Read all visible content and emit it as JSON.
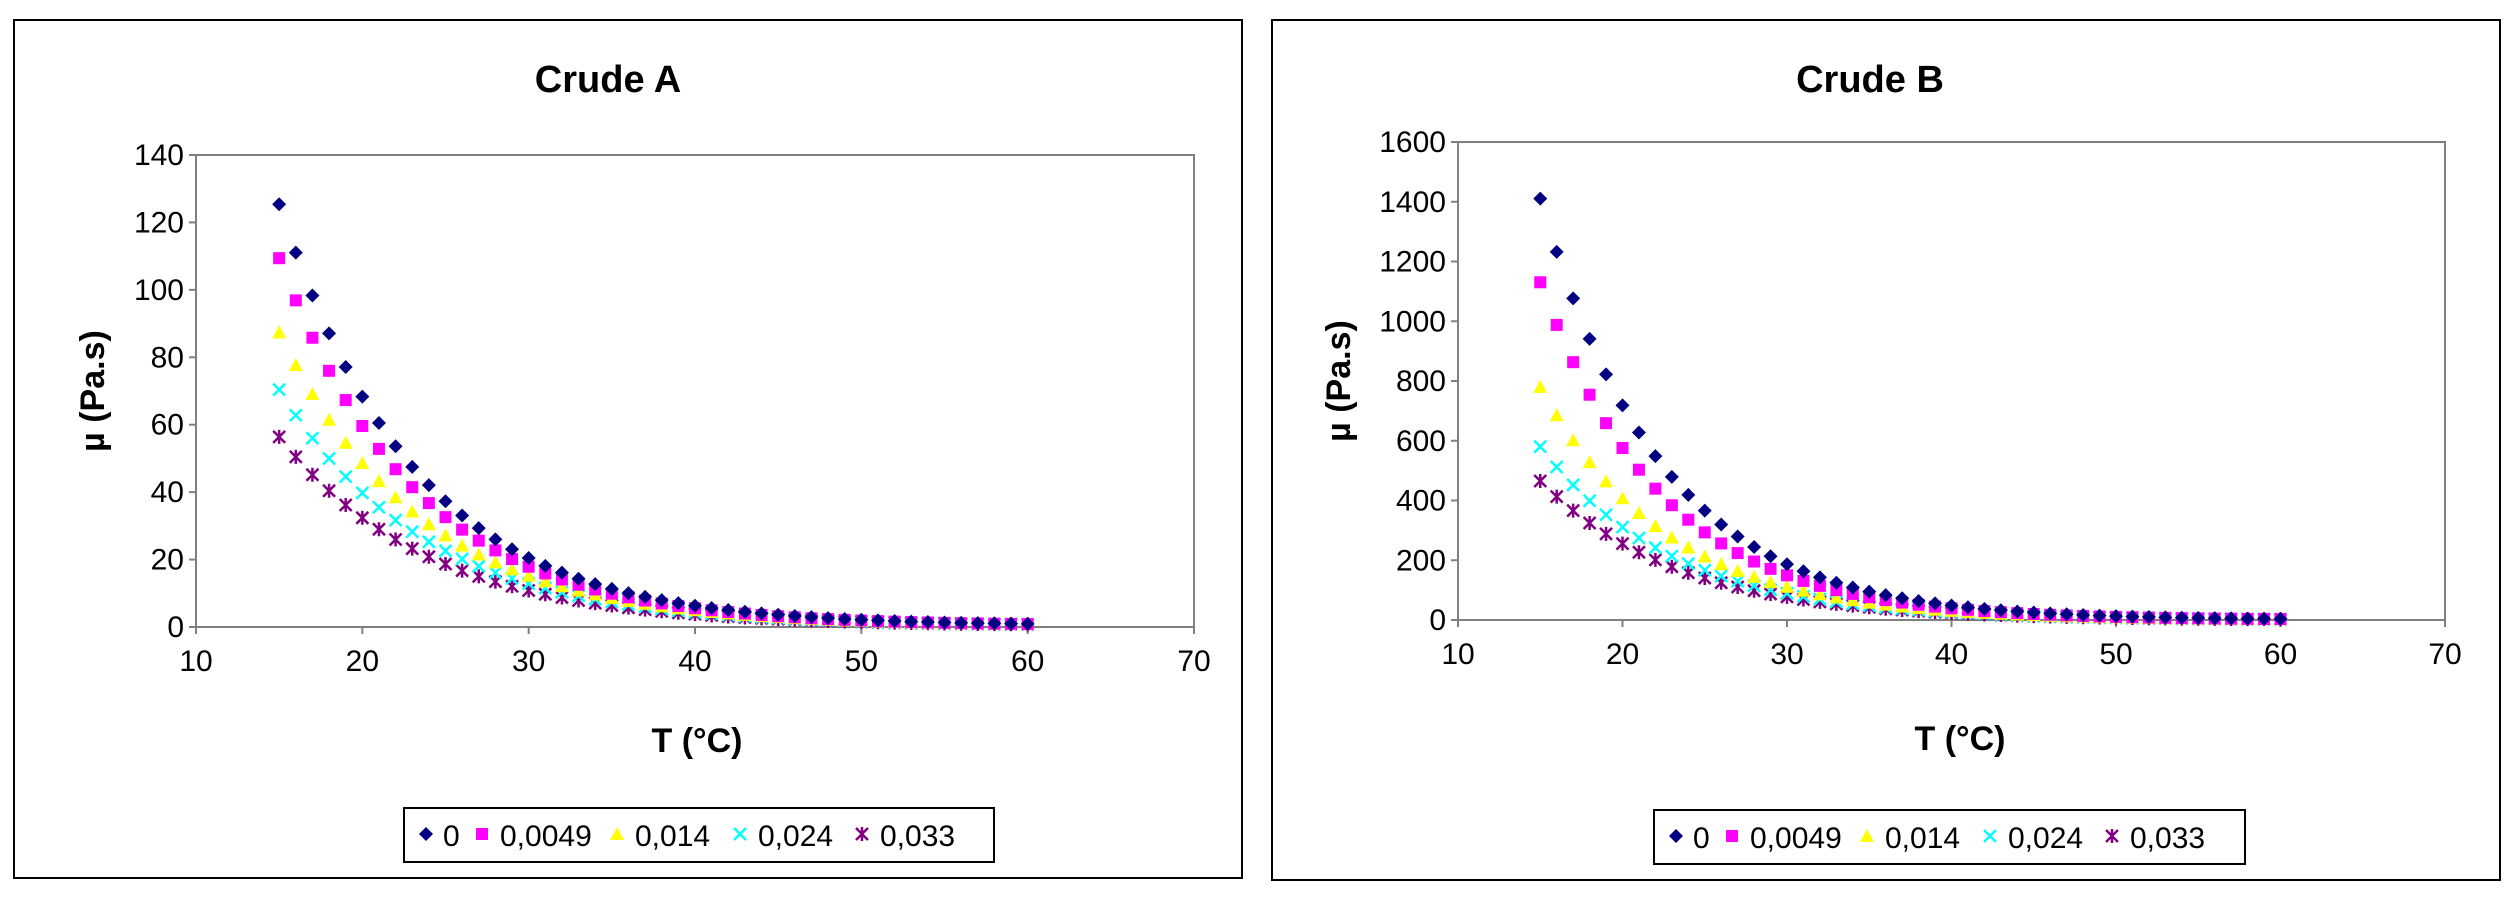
{
  "colors": {
    "s0": "#000080",
    "s1": "#FF00FF",
    "s2": "#FFFF00",
    "s3": "#00FFFF",
    "s4": "#800080"
  },
  "chart_data": [
    {
      "type": "scatter",
      "title": "Crude A",
      "xlabel": "T (°C)",
      "ylabel": "µ (Pa.s)",
      "xlim": [
        10,
        70
      ],
      "ylim": [
        0,
        140
      ],
      "xticks": [
        10,
        20,
        30,
        40,
        50,
        60,
        70
      ],
      "yticks": [
        0,
        20,
        40,
        60,
        80,
        100,
        120,
        140
      ],
      "grid": false,
      "legend_position": "bottom",
      "x_range": [
        15,
        60
      ],
      "series": [
        {
          "name": "0",
          "marker": "diamond",
          "color_key": "s0",
          "mu_at_15C": 125,
          "decay_per_C": 0.122
        },
        {
          "name": "0,0049",
          "marker": "square",
          "color_key": "s1",
          "mu_at_15C": 109,
          "decay_per_C": 0.122
        },
        {
          "name": "0,014",
          "marker": "triangle",
          "color_key": "s2",
          "mu_at_15C": 87,
          "decay_per_C": 0.118
        },
        {
          "name": "0,024",
          "marker": "x",
          "color_key": "s3",
          "mu_at_15C": 70,
          "decay_per_C": 0.115
        },
        {
          "name": "0,033",
          "marker": "star",
          "color_key": "s4",
          "mu_at_15C": 56,
          "decay_per_C": 0.112
        }
      ]
    },
    {
      "type": "scatter",
      "title": "Crude B",
      "xlabel": "T (°C)",
      "ylabel": "µ (Pa.s)",
      "xlim": [
        10,
        70
      ],
      "ylim": [
        0,
        1600
      ],
      "xticks": [
        10,
        20,
        30,
        40,
        50,
        60,
        70
      ],
      "yticks": [
        0,
        200,
        400,
        600,
        800,
        1000,
        1200,
        1400,
        1600
      ],
      "grid": false,
      "legend_position": "bottom",
      "x_range": [
        15,
        60
      ],
      "series": [
        {
          "name": "0",
          "marker": "diamond",
          "color_key": "s0",
          "mu_at_15C": 1410,
          "decay_per_C": 0.135
        },
        {
          "name": "0,0049",
          "marker": "square",
          "color_key": "s1",
          "mu_at_15C": 1130,
          "decay_per_C": 0.135
        },
        {
          "name": "0,014",
          "marker": "triangle",
          "color_key": "s2",
          "mu_at_15C": 780,
          "decay_per_C": 0.13
        },
        {
          "name": "0,024",
          "marker": "x",
          "color_key": "s3",
          "mu_at_15C": 580,
          "decay_per_C": 0.125
        },
        {
          "name": "0,033",
          "marker": "star",
          "color_key": "s4",
          "mu_at_15C": 465,
          "decay_per_C": 0.12
        }
      ]
    }
  ]
}
